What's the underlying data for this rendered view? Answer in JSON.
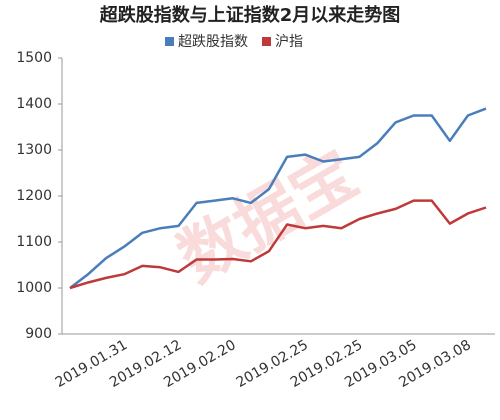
{
  "chart_data": {
    "type": "line",
    "title": "超跌股指数与上证指数2月以来走势图",
    "watermark": "数据宝",
    "categories": [
      null,
      null,
      "2019.01.31",
      null,
      null,
      "2019.02.12",
      null,
      null,
      "2019.02.20",
      null,
      null,
      null,
      "2019.02.25",
      null,
      null,
      "2019.02.25",
      null,
      null,
      "2019.03.05",
      null,
      null,
      "2019.03.08",
      null,
      null
    ],
    "series": [
      {
        "name": "超跌股指数",
        "color": "#4a7ebb",
        "values": [
          1000,
          1030,
          1065,
          1090,
          1120,
          1130,
          1135,
          1185,
          1190,
          1195,
          1185,
          1215,
          1285,
          1290,
          1275,
          1280,
          1285,
          1315,
          1360,
          1375,
          1375,
          1320,
          1375,
          1390
        ]
      },
      {
        "name": "沪指",
        "color": "#be3a3a",
        "values": [
          1000,
          1012,
          1022,
          1030,
          1048,
          1045,
          1035,
          1062,
          1062,
          1063,
          1058,
          1080,
          1138,
          1130,
          1135,
          1130,
          1150,
          1162,
          1172,
          1190,
          1190,
          1140,
          1162,
          1175
        ]
      }
    ],
    "ylim": [
      900,
      1500
    ],
    "yticks": [
      900,
      1000,
      1100,
      1200,
      1300,
      1400,
      1500
    ],
    "grid": false
  }
}
